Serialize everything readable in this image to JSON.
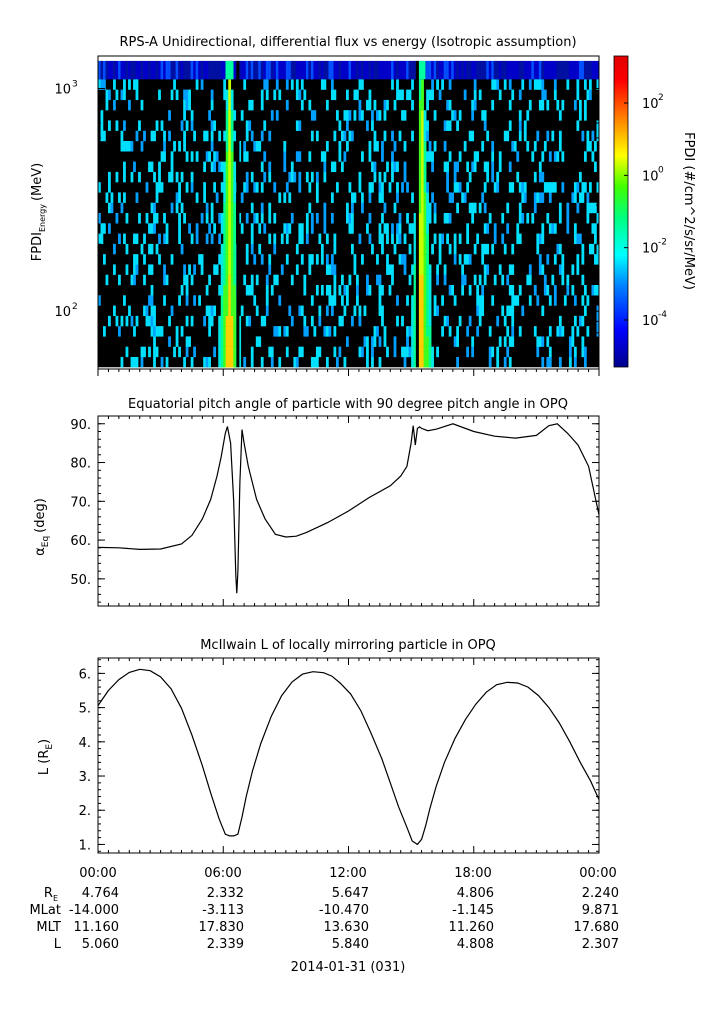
{
  "chart_data": [
    {
      "type": "heatmap",
      "title": "RPS-A Unidirectional, differential flux vs energy (Isotropic assumption)",
      "ylabel": "FPDI",
      "ylabel_subscript": "Energy",
      "ylabel_units": "(MeV)",
      "y_scale": "log",
      "ylim": [
        55,
        1400
      ],
      "y_ticks": [
        {
          "base": "10",
          "exp": "2"
        },
        {
          "base": "10",
          "exp": "3"
        }
      ],
      "colorbar": {
        "label": "FPDI (#/cm^2/s/sr/MeV)",
        "scale": "log",
        "range_exp": [
          -5.3,
          3.3
        ],
        "ticks": [
          {
            "base": "10",
            "exp": "2"
          },
          {
            "base": "10",
            "exp": "0"
          },
          {
            "base": "10",
            "exp": "-2"
          },
          {
            "base": "10",
            "exp": "-4"
          }
        ]
      },
      "xlim_hours": [
        0,
        24
      ],
      "bright_bands_hours": [
        {
          "center": 6.3,
          "edge": 6.8
        },
        {
          "center": 15.5,
          "edge": 15.2
        }
      ],
      "gaps_hours": [
        6.7,
        15.3
      ]
    },
    {
      "type": "line",
      "title": "Equatorial pitch angle of particle with 90 degree pitch angle in OPQ",
      "ylabel": "α",
      "ylabel_subscript": "Eq",
      "ylabel_units": "(deg)",
      "ylim": [
        43,
        92
      ],
      "y_ticks": [
        "50.",
        "60.",
        "70.",
        "80.",
        "90."
      ],
      "x_hours": [
        0,
        1,
        2,
        3,
        4,
        4.5,
        5,
        5.4,
        5.7,
        5.9,
        6.1,
        6.2,
        6.35,
        6.5,
        6.6,
        6.65,
        6.7,
        6.8,
        6.9,
        7,
        7.2,
        7.6,
        8,
        8.5,
        9,
        9.5,
        10,
        11,
        12,
        13,
        14,
        14.5,
        14.8,
        15,
        15.1,
        15.2,
        15.3,
        15.4,
        15.5,
        15.8,
        16.2,
        17,
        18,
        19,
        20,
        21,
        21.6,
        22,
        22.5,
        23,
        23.5,
        24
      ],
      "values": [
        58.1,
        58,
        57.6,
        57.7,
        59,
        61.2,
        65.5,
        70.5,
        76.5,
        81.5,
        87.5,
        89.3,
        85,
        70,
        51,
        46.3,
        52,
        75,
        88.5,
        85,
        79,
        70.5,
        65.5,
        61.5,
        60.8,
        61,
        62,
        64.5,
        67.5,
        71,
        74,
        76.5,
        79,
        85,
        89.5,
        84.5,
        88.8,
        89.2,
        88.8,
        88.2,
        88.6,
        90,
        88,
        86.8,
        86.3,
        87,
        89.5,
        90,
        87.5,
        84.5,
        79,
        66.5
      ]
    },
    {
      "type": "line",
      "title": "McIlwain L of locally mirroring particle in OPQ",
      "ylabel": "L (R",
      "ylabel_subscript": "E",
      "ylabel_units": ")",
      "ylim": [
        0.75,
        6.45
      ],
      "y_ticks": [
        "1.",
        "2.",
        "3.",
        "4.",
        "5.",
        "6."
      ],
      "x_hours": [
        0,
        0.5,
        1,
        1.5,
        2,
        2.5,
        3,
        3.5,
        4,
        4.5,
        5,
        5.4,
        5.8,
        6.1,
        6.3,
        6.5,
        6.7,
        6.9,
        7.1,
        7.4,
        7.8,
        8.3,
        8.8,
        9.3,
        9.8,
        10.3,
        10.8,
        11.2,
        11.6,
        12.1,
        12.6,
        13.1,
        13.6,
        14,
        14.4,
        14.8,
        15.05,
        15.3,
        15.5,
        15.7,
        15.9,
        16.2,
        16.6,
        17.1,
        17.6,
        18.1,
        18.6,
        19.1,
        19.6,
        20.1,
        20.6,
        21.1,
        21.6,
        22.1,
        22.6,
        23.1,
        23.6,
        24
      ],
      "values": [
        5.06,
        5.5,
        5.82,
        6.03,
        6.12,
        6.08,
        5.9,
        5.55,
        4.98,
        4.2,
        3.3,
        2.5,
        1.75,
        1.3,
        1.25,
        1.25,
        1.3,
        1.8,
        2.4,
        3.15,
        3.95,
        4.75,
        5.35,
        5.75,
        5.98,
        6.05,
        6.02,
        5.92,
        5.72,
        5.4,
        4.9,
        4.22,
        3.5,
        2.8,
        2.1,
        1.5,
        1.1,
        1.0,
        1.15,
        1.55,
        2.05,
        2.7,
        3.4,
        4.1,
        4.65,
        5.1,
        5.45,
        5.67,
        5.74,
        5.72,
        5.6,
        5.35,
        5.0,
        4.55,
        4.0,
        3.4,
        2.85,
        2.31
      ]
    }
  ],
  "time_axis": {
    "tick_labels": [
      "00:00",
      "06:00",
      "12:00",
      "18:00",
      "00:00"
    ],
    "date_label": "2014-01-31 (031)"
  },
  "ephemeris": {
    "rows": [
      {
        "label": "R",
        "label_sub": "E",
        "values": [
          "4.764",
          "2.332",
          "5.647",
          "4.806",
          "2.240"
        ]
      },
      {
        "label": "MLat",
        "label_sub": "",
        "values": [
          "-14.000",
          "-3.113",
          "-10.470",
          "-1.145",
          "9.871"
        ]
      },
      {
        "label": "MLT",
        "label_sub": "",
        "values": [
          "11.160",
          "17.830",
          "13.630",
          "11.260",
          "17.680"
        ]
      },
      {
        "label": "L",
        "label_sub": "",
        "values": [
          "5.060",
          "2.339",
          "5.840",
          "4.808",
          "2.307"
        ]
      }
    ]
  }
}
